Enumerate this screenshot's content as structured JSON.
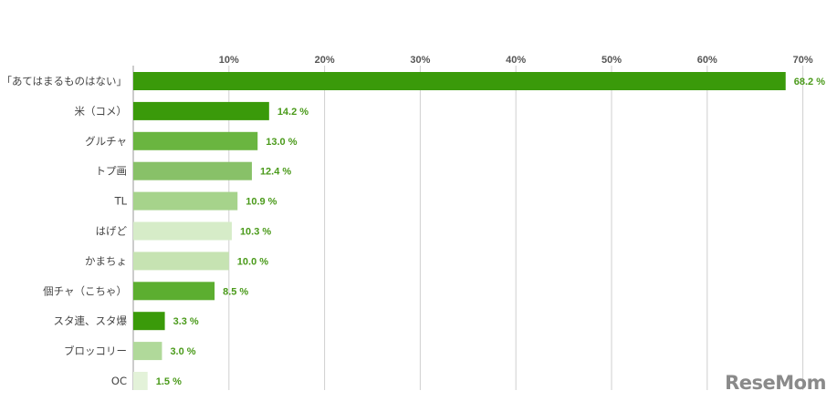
{
  "chart_data": {
    "type": "bar",
    "orientation": "horizontal",
    "categories": [
      "「あてはまるものはない」",
      "米（コメ）",
      "グルチャ",
      "トプ画",
      "TL",
      "はげど",
      "かまちょ",
      "個チャ（こちゃ）",
      "スタ連、スタ爆",
      "ブロッコリー",
      "OC"
    ],
    "values": [
      68.2,
      14.2,
      13.0,
      12.4,
      10.9,
      10.3,
      10.0,
      8.5,
      3.3,
      3.0,
      1.5
    ],
    "value_labels": [
      "68.2 %",
      "14.2 %",
      "13.0 %",
      "12.4 %",
      "10.9 %",
      "10.3 %",
      "10.0 %",
      "8.5 %",
      "3.3 %",
      "3.0 %",
      "1.5 %"
    ],
    "bar_colors": [
      "#3a9a0a",
      "#3a9a0a",
      "#6ab540",
      "#88c168",
      "#a6d38b",
      "#d6ecc8",
      "#c6e3b2",
      "#5cae30",
      "#3a9a0a",
      "#b0d99a",
      "#e3f2d9"
    ],
    "xlim": [
      0,
      70
    ],
    "xticks": [
      10,
      20,
      30,
      40,
      50,
      60,
      70
    ],
    "xtick_labels": [
      "10%",
      "20%",
      "30%",
      "40%",
      "50%",
      "60%",
      "70%"
    ],
    "grid": true,
    "title": "",
    "xlabel": "",
    "ylabel": ""
  },
  "logo": {
    "text": "ReseMom"
  }
}
